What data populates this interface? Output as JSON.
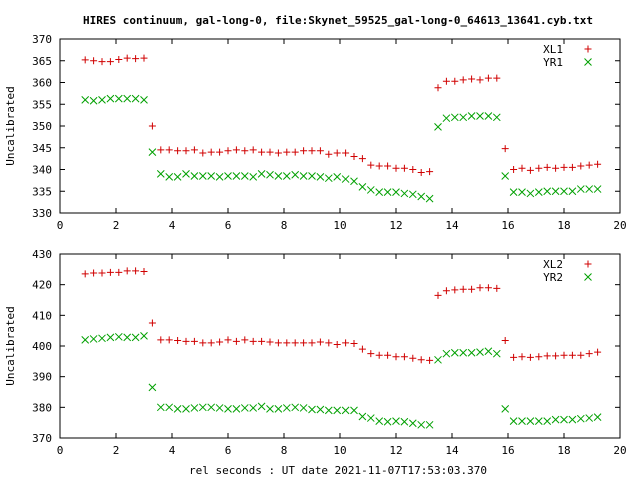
{
  "page": {
    "title": "HIRES continuum, gal-long-0, file:Skynet_59525_gal-long-0_64613_13641.cyb.txt",
    "xlabel": "rel seconds : UT date 2021-11-07T17:53:03.370"
  },
  "colors": {
    "red": "#d00000",
    "green": "#00a000",
    "axis": "#000000"
  },
  "chart_data": [
    {
      "type": "scatter",
      "ylabel": "Uncalibrated",
      "xlim": [
        0,
        20
      ],
      "ylim": [
        330,
        370
      ],
      "xticks": [
        0,
        2,
        4,
        6,
        8,
        10,
        12,
        14,
        16,
        18,
        20
      ],
      "yticks": [
        330,
        335,
        340,
        345,
        350,
        355,
        360,
        365,
        370
      ],
      "legend": "top-right",
      "series": [
        {
          "name": "XL1",
          "marker": "plus",
          "color": "#d00000",
          "x": [
            0.9,
            1.2,
            1.5,
            1.8,
            2.1,
            2.4,
            2.7,
            3.0,
            3.3,
            3.6,
            3.9,
            4.2,
            4.5,
            4.8,
            5.1,
            5.4,
            5.7,
            6.0,
            6.3,
            6.6,
            6.9,
            7.2,
            7.5,
            7.8,
            8.1,
            8.4,
            8.7,
            9.0,
            9.3,
            9.6,
            9.9,
            10.2,
            10.5,
            10.8,
            11.1,
            11.4,
            11.7,
            12.0,
            12.3,
            12.6,
            12.9,
            13.2,
            13.5,
            13.8,
            14.1,
            14.4,
            14.7,
            15.0,
            15.3,
            15.6,
            15.9,
            16.2,
            16.5,
            16.8,
            17.1,
            17.4,
            17.7,
            18.0,
            18.3,
            18.6,
            18.9,
            19.2
          ],
          "y": [
            365.2,
            365.0,
            364.8,
            364.8,
            365.3,
            365.6,
            365.5,
            365.6,
            350.0,
            344.5,
            344.5,
            344.3,
            344.3,
            344.5,
            343.8,
            344.0,
            344.0,
            344.3,
            344.5,
            344.3,
            344.5,
            344.0,
            344.0,
            343.8,
            344.0,
            344.0,
            344.3,
            344.3,
            344.3,
            343.5,
            343.8,
            343.8,
            343.0,
            342.5,
            341.0,
            340.8,
            340.8,
            340.3,
            340.3,
            340.0,
            339.3,
            339.5,
            358.8,
            360.3,
            360.3,
            360.6,
            360.8,
            360.6,
            361.0,
            361.0,
            344.8,
            340.0,
            340.3,
            339.8,
            340.3,
            340.5,
            340.3,
            340.5,
            340.5,
            340.8,
            341.0,
            341.2
          ]
        },
        {
          "name": "YR1",
          "marker": "cross",
          "color": "#00a000",
          "x": [
            0.9,
            1.2,
            1.5,
            1.8,
            2.1,
            2.4,
            2.7,
            3.0,
            3.3,
            3.6,
            3.9,
            4.2,
            4.5,
            4.8,
            5.1,
            5.4,
            5.7,
            6.0,
            6.3,
            6.6,
            6.9,
            7.2,
            7.5,
            7.8,
            8.1,
            8.4,
            8.7,
            9.0,
            9.3,
            9.6,
            9.9,
            10.2,
            10.5,
            10.8,
            11.1,
            11.4,
            11.7,
            12.0,
            12.3,
            12.6,
            12.9,
            13.2,
            13.5,
            13.8,
            14.1,
            14.4,
            14.7,
            15.0,
            15.3,
            15.6,
            15.9,
            16.2,
            16.5,
            16.8,
            17.1,
            17.4,
            17.7,
            18.0,
            18.3,
            18.6,
            18.9,
            19.2
          ],
          "y": [
            356.0,
            355.8,
            356.0,
            356.3,
            356.3,
            356.3,
            356.3,
            356.0,
            344.0,
            339.0,
            338.3,
            338.3,
            339.0,
            338.5,
            338.5,
            338.5,
            338.3,
            338.5,
            338.5,
            338.5,
            338.3,
            339.0,
            338.8,
            338.5,
            338.5,
            338.8,
            338.5,
            338.5,
            338.3,
            338.0,
            338.3,
            337.8,
            337.3,
            336.0,
            335.3,
            334.8,
            334.8,
            334.8,
            334.5,
            334.3,
            333.8,
            333.3,
            349.8,
            351.8,
            352.0,
            352.0,
            352.3,
            352.3,
            352.3,
            352.0,
            338.5,
            334.8,
            334.8,
            334.5,
            334.8,
            335.0,
            335.0,
            335.0,
            335.0,
            335.5,
            335.5,
            335.5
          ]
        }
      ]
    },
    {
      "type": "scatter",
      "ylabel": "Uncalibrated",
      "xlim": [
        0,
        20
      ],
      "ylim": [
        370,
        430
      ],
      "xticks": [
        0,
        2,
        4,
        6,
        8,
        10,
        12,
        14,
        16,
        18,
        20
      ],
      "yticks": [
        370,
        380,
        390,
        400,
        410,
        420,
        430
      ],
      "legend": "top-right",
      "series": [
        {
          "name": "XL2",
          "marker": "plus",
          "color": "#d00000",
          "x": [
            0.9,
            1.2,
            1.5,
            1.8,
            2.1,
            2.4,
            2.7,
            3.0,
            3.3,
            3.6,
            3.9,
            4.2,
            4.5,
            4.8,
            5.1,
            5.4,
            5.7,
            6.0,
            6.3,
            6.6,
            6.9,
            7.2,
            7.5,
            7.8,
            8.1,
            8.4,
            8.7,
            9.0,
            9.3,
            9.6,
            9.9,
            10.2,
            10.5,
            10.8,
            11.1,
            11.4,
            11.7,
            12.0,
            12.3,
            12.6,
            12.9,
            13.2,
            13.5,
            13.8,
            14.1,
            14.4,
            14.7,
            15.0,
            15.3,
            15.6,
            15.9,
            16.2,
            16.5,
            16.8,
            17.1,
            17.4,
            17.7,
            18.0,
            18.3,
            18.6,
            18.9,
            19.2
          ],
          "y": [
            423.5,
            423.8,
            423.8,
            424.0,
            424.0,
            424.5,
            424.5,
            424.3,
            407.5,
            402.0,
            402.0,
            401.8,
            401.5,
            401.5,
            401.0,
            401.0,
            401.3,
            402.0,
            401.5,
            402.0,
            401.5,
            401.5,
            401.3,
            401.0,
            401.0,
            401.0,
            401.0,
            401.0,
            401.3,
            401.0,
            400.5,
            401.0,
            400.8,
            399.0,
            397.5,
            397.0,
            397.0,
            396.5,
            396.5,
            396.0,
            395.5,
            395.3,
            416.5,
            418.0,
            418.3,
            418.5,
            418.5,
            419.0,
            419.0,
            418.8,
            401.8,
            396.3,
            396.5,
            396.3,
            396.5,
            396.8,
            396.8,
            397.0,
            397.0,
            397.0,
            397.5,
            398.0
          ]
        },
        {
          "name": "YR2",
          "marker": "cross",
          "color": "#00a000",
          "x": [
            0.9,
            1.2,
            1.5,
            1.8,
            2.1,
            2.4,
            2.7,
            3.0,
            3.3,
            3.6,
            3.9,
            4.2,
            4.5,
            4.8,
            5.1,
            5.4,
            5.7,
            6.0,
            6.3,
            6.6,
            6.9,
            7.2,
            7.5,
            7.8,
            8.1,
            8.4,
            8.7,
            9.0,
            9.3,
            9.6,
            9.9,
            10.2,
            10.5,
            10.8,
            11.1,
            11.4,
            11.7,
            12.0,
            12.3,
            12.6,
            12.9,
            13.2,
            13.5,
            13.8,
            14.1,
            14.4,
            14.7,
            15.0,
            15.3,
            15.6,
            15.9,
            16.2,
            16.5,
            16.8,
            17.1,
            17.4,
            17.7,
            18.0,
            18.3,
            18.6,
            18.9,
            19.2
          ],
          "y": [
            402.0,
            402.3,
            402.5,
            402.8,
            403.0,
            402.8,
            402.8,
            403.3,
            386.5,
            380.0,
            380.0,
            379.5,
            379.5,
            379.8,
            380.0,
            380.0,
            379.8,
            379.5,
            379.5,
            379.8,
            379.8,
            380.3,
            379.5,
            379.5,
            379.8,
            380.0,
            379.8,
            379.3,
            379.3,
            379.0,
            379.0,
            379.0,
            379.0,
            377.0,
            376.5,
            375.5,
            375.3,
            375.5,
            375.3,
            374.8,
            374.3,
            374.3,
            395.5,
            397.5,
            397.8,
            397.8,
            397.8,
            398.0,
            398.3,
            397.5,
            379.5,
            375.5,
            375.5,
            375.5,
            375.5,
            375.5,
            376.0,
            376.0,
            376.0,
            376.3,
            376.5,
            376.8
          ]
        }
      ]
    }
  ]
}
